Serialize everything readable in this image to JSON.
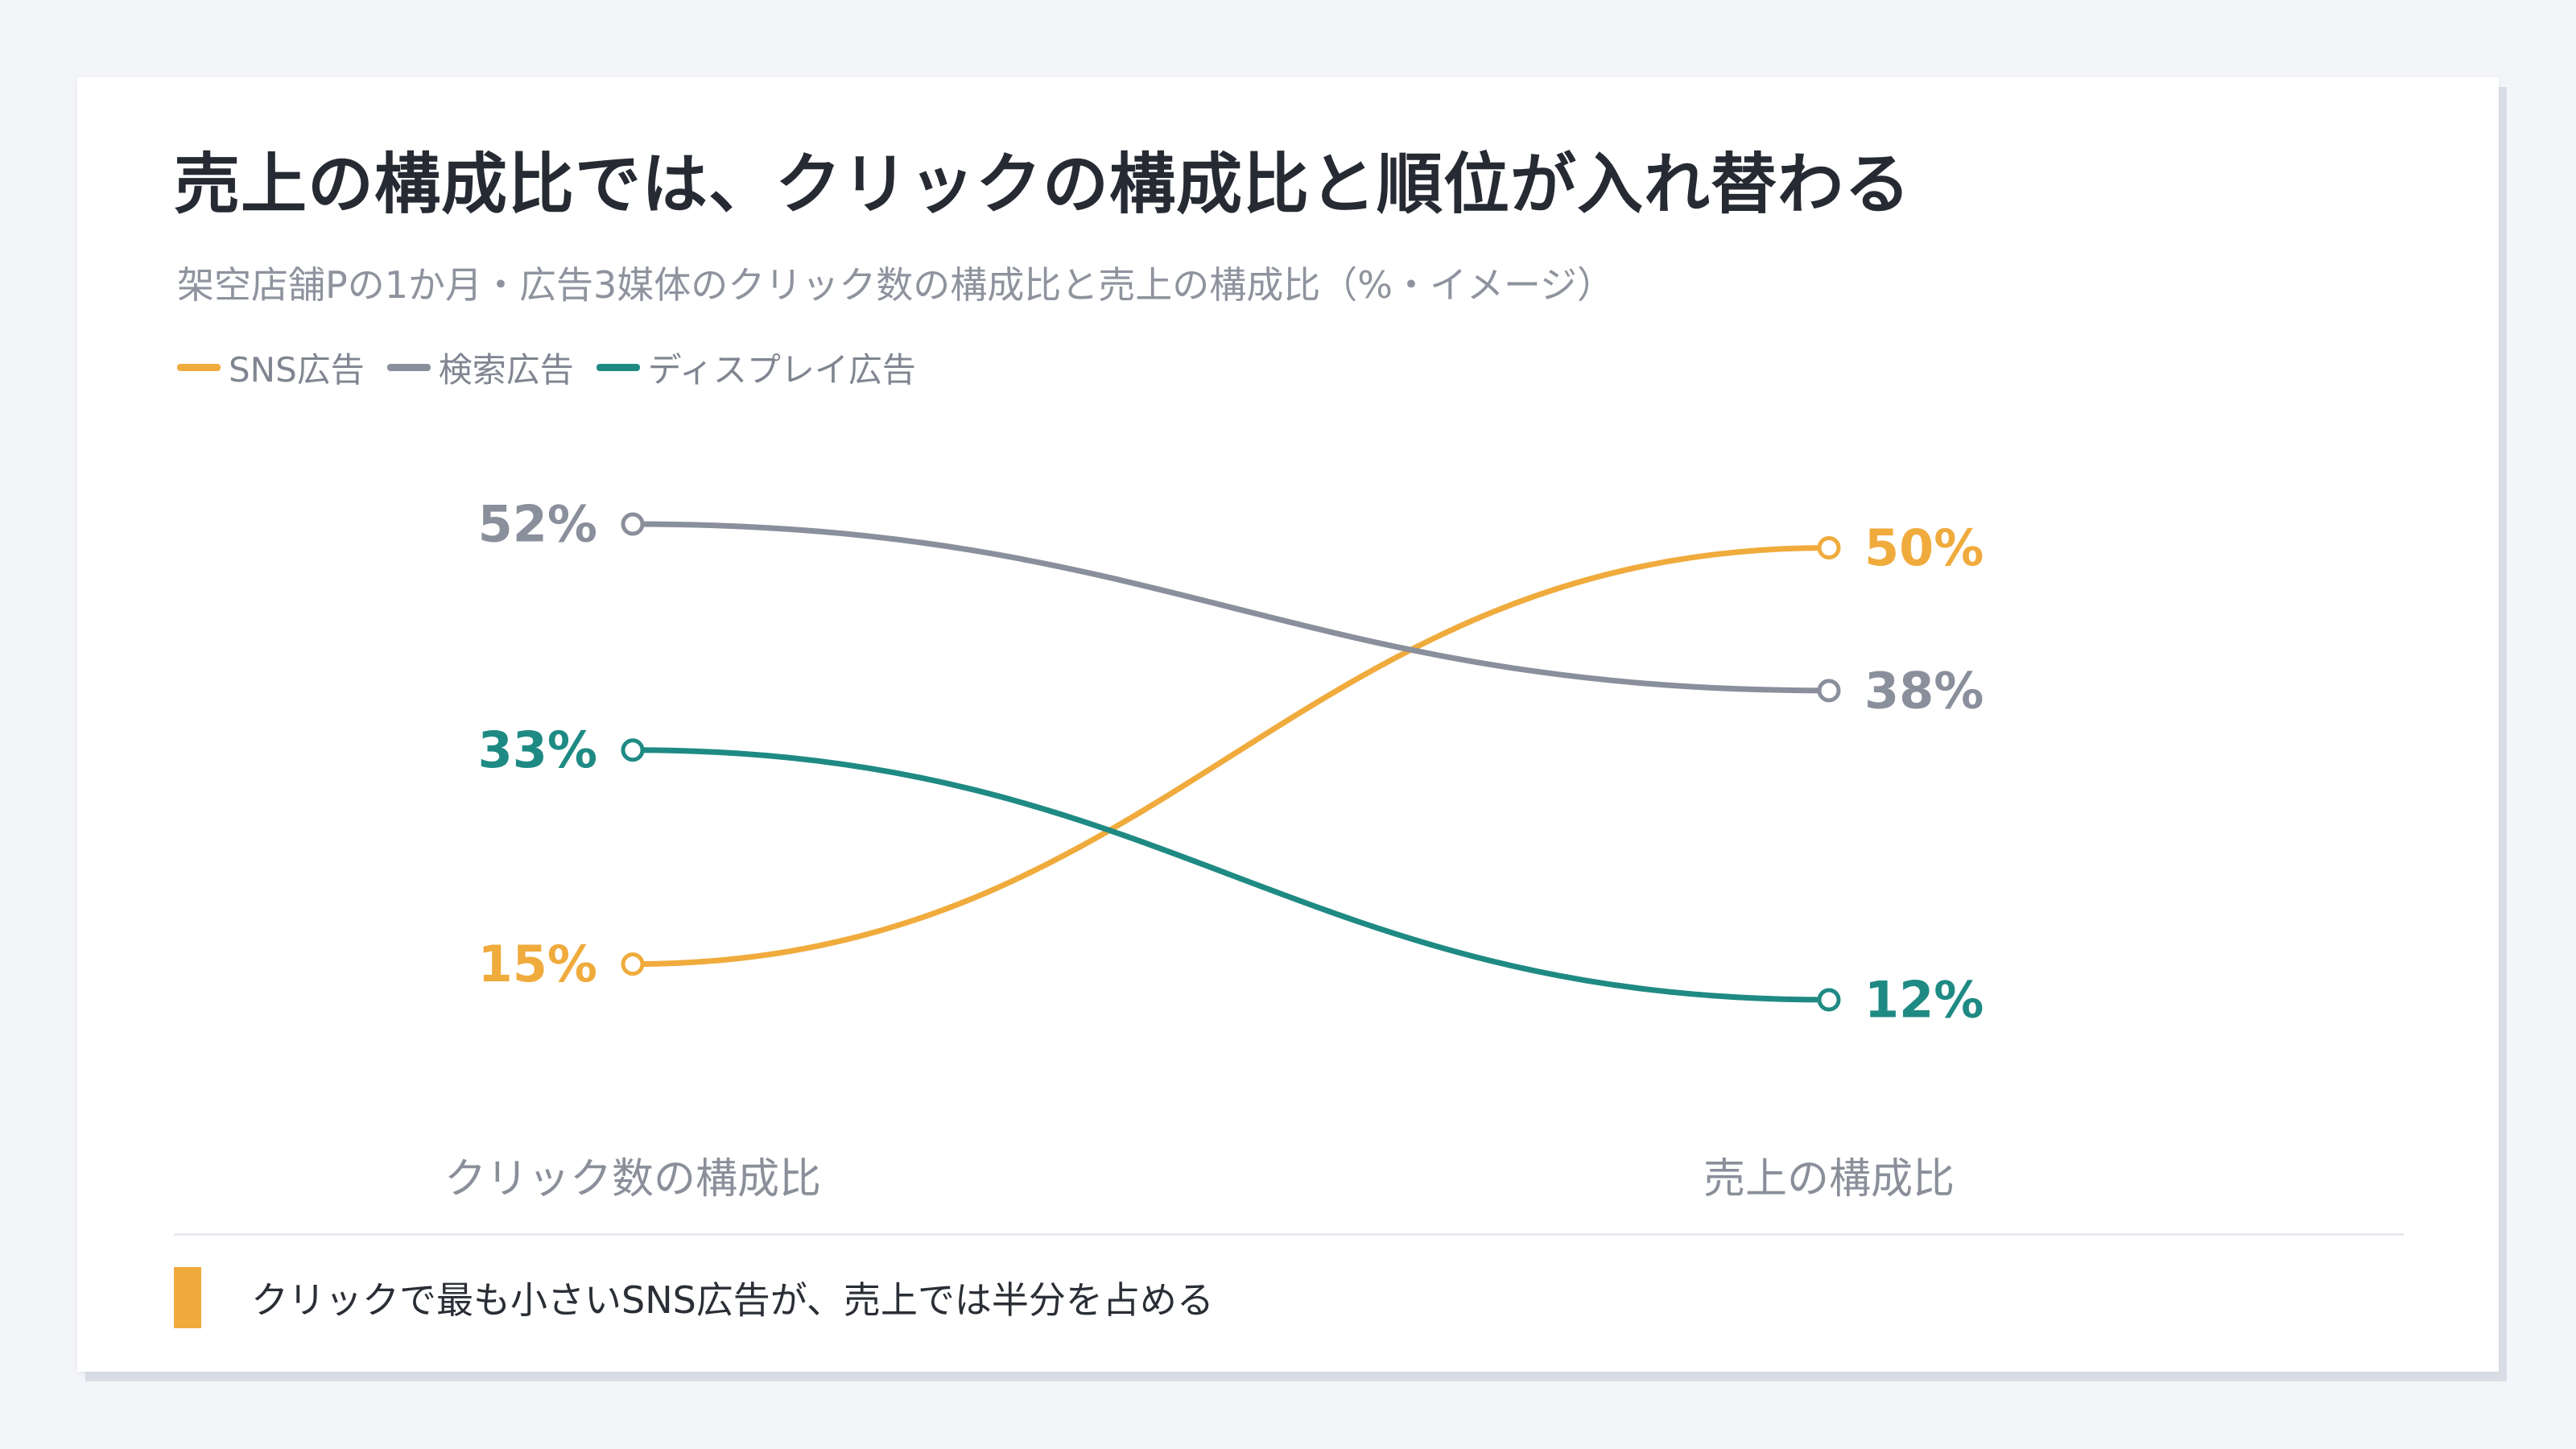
{
  "title": "売上の構成比では、クリックの構成比と順位が入れ替わる",
  "subtitle": "架空店舗Pの1か月・広告3媒体のクリック数の構成比と売上の構成比（%・イメージ）",
  "legend": [
    {
      "label": "SNS広告",
      "color": "#f0ab3d"
    },
    {
      "label": "検索広告",
      "color": "#8a8f9c"
    },
    {
      "label": "ディスプレイ広告",
      "color": "#1f8a84"
    }
  ],
  "note": "クリックで最も小さいSNS広告が、売上では半分を占める",
  "chart_data": {
    "type": "line",
    "x": [
      "クリック数の構成比",
      "売上の構成比"
    ],
    "series": [
      {
        "name": "SNS広告",
        "color": "#f0ab3d",
        "values": [
          15,
          50
        ],
        "labels": [
          "15%",
          "50%"
        ]
      },
      {
        "name": "検索広告",
        "color": "#8a8f9c",
        "values": [
          52,
          38
        ],
        "labels": [
          "52%",
          "38%"
        ]
      },
      {
        "name": "ディスプレイ広告",
        "color": "#1f8a84",
        "values": [
          33,
          12
        ],
        "labels": [
          "33%",
          "12%"
        ]
      }
    ],
    "ylim": [
      12,
      52
    ],
    "grid": false,
    "legend_position": "top-left"
  }
}
